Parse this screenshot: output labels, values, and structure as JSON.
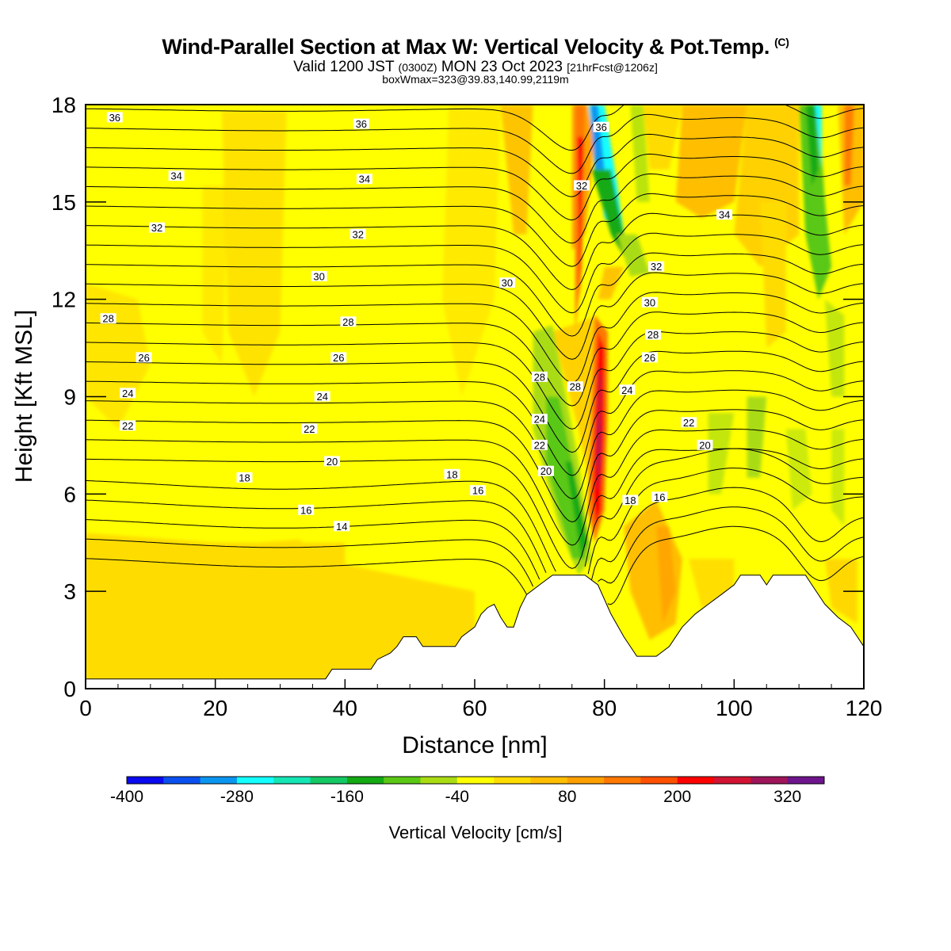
{
  "header": {
    "title": "Wind-Parallel Section at Max W: Vertical Velocity & Pot.Temp.",
    "copyright": "(C)",
    "valid_prefix": "Valid 1200 JST",
    "valid_utc": "(0300Z)",
    "valid_date": "MON 23 Oct 2023",
    "forecast": "[21hrFcst@1206z]",
    "boxwmax": "boxWmax=323@39.83,140.99,2119m"
  },
  "chart_data": {
    "type": "heatmap",
    "title": "Wind-Parallel Section at Max W: Vertical Velocity & Pot.Temp.",
    "xlabel": "Distance [nm]",
    "ylabel": "Height [Kft MSL]",
    "xlim": [
      0,
      120
    ],
    "ylim": [
      0,
      18
    ],
    "x_ticks": [
      "0",
      "20",
      "40",
      "60",
      "80",
      "100",
      "120"
    ],
    "y_ticks": [
      "0",
      "3",
      "6",
      "9",
      "12",
      "15",
      "18"
    ],
    "colorbar": {
      "title": "Vertical Velocity [cm/s]",
      "colors": [
        "#0a0af0",
        "#0a50f0",
        "#0a96f0",
        "#14ffff",
        "#14e6b4",
        "#14c864",
        "#14aa14",
        "#5ac814",
        "#aadc14",
        "#ffff00",
        "#ffdc00",
        "#ffbe00",
        "#ffa000",
        "#ff7800",
        "#ff5000",
        "#ff0000",
        "#d21432",
        "#a0145a",
        "#6e148c"
      ],
      "tick_labels": [
        "-400",
        "-280",
        "-160",
        "-40",
        "80",
        "200",
        "320"
      ],
      "tick_values": [
        -400,
        -280,
        -160,
        -40,
        80,
        200,
        320
      ],
      "range": [
        -400,
        360
      ]
    },
    "terrain_kft": [
      [
        0,
        0.3
      ],
      [
        10,
        0.3
      ],
      [
        20,
        0.3
      ],
      [
        30,
        0.3
      ],
      [
        37,
        0.3
      ],
      [
        38,
        0.6
      ],
      [
        44,
        0.6
      ],
      [
        45,
        0.9
      ],
      [
        47,
        1.1
      ],
      [
        48,
        1.3
      ],
      [
        49,
        1.6
      ],
      [
        51,
        1.6
      ],
      [
        52,
        1.3
      ],
      [
        57,
        1.3
      ],
      [
        58,
        1.6
      ],
      [
        60,
        1.9
      ],
      [
        61,
        2.3
      ],
      [
        62,
        2.5
      ],
      [
        63,
        2.6
      ],
      [
        64,
        2.2
      ],
      [
        65,
        1.9
      ],
      [
        66,
        1.9
      ],
      [
        67,
        2.5
      ],
      [
        68,
        2.9
      ],
      [
        70,
        3.2
      ],
      [
        72,
        3.5
      ],
      [
        77,
        3.5
      ],
      [
        79,
        3.2
      ],
      [
        81,
        2.3
      ],
      [
        83,
        1.6
      ],
      [
        85,
        1.0
      ],
      [
        88,
        1.0
      ],
      [
        90,
        1.3
      ],
      [
        92,
        1.9
      ],
      [
        94,
        2.3
      ],
      [
        96,
        2.6
      ],
      [
        98,
        2.9
      ],
      [
        100,
        3.2
      ],
      [
        101,
        3.5
      ],
      [
        104,
        3.5
      ],
      [
        105,
        3.2
      ],
      [
        106,
        3.5
      ],
      [
        111,
        3.5
      ],
      [
        112,
        3.2
      ],
      [
        114,
        2.6
      ],
      [
        116,
        2.2
      ],
      [
        118,
        1.9
      ],
      [
        119,
        1.6
      ],
      [
        120,
        1.3
      ]
    ],
    "contour_labels": [
      {
        "v": "36",
        "x": 4.5,
        "y": 17.6
      },
      {
        "v": "36",
        "x": 42.5,
        "y": 17.4
      },
      {
        "v": "36",
        "x": 79.5,
        "y": 17.3
      },
      {
        "v": "34",
        "x": 14,
        "y": 15.8
      },
      {
        "v": "34",
        "x": 43,
        "y": 15.7
      },
      {
        "v": "34",
        "x": 98.5,
        "y": 14.6
      },
      {
        "v": "32",
        "x": 11,
        "y": 14.2
      },
      {
        "v": "32",
        "x": 42,
        "y": 14.0
      },
      {
        "v": "32",
        "x": 76.5,
        "y": 15.5
      },
      {
        "v": "32",
        "x": 88,
        "y": 13.0
      },
      {
        "v": "30",
        "x": 36,
        "y": 12.7
      },
      {
        "v": "30",
        "x": 65,
        "y": 12.5
      },
      {
        "v": "30",
        "x": 87,
        "y": 11.9
      },
      {
        "v": "28",
        "x": 3.5,
        "y": 11.4
      },
      {
        "v": "28",
        "x": 40.5,
        "y": 11.3
      },
      {
        "v": "28",
        "x": 70,
        "y": 9.6
      },
      {
        "v": "28",
        "x": 75.5,
        "y": 9.3
      },
      {
        "v": "28",
        "x": 87.5,
        "y": 10.9
      },
      {
        "v": "26",
        "x": 9,
        "y": 10.2
      },
      {
        "v": "26",
        "x": 39,
        "y": 10.2
      },
      {
        "v": "26",
        "x": 87,
        "y": 10.2
      },
      {
        "v": "24",
        "x": 6.5,
        "y": 9.1
      },
      {
        "v": "24",
        "x": 36.5,
        "y": 9.0
      },
      {
        "v": "24",
        "x": 70,
        "y": 8.3
      },
      {
        "v": "24",
        "x": 83.5,
        "y": 9.2
      },
      {
        "v": "22",
        "x": 6.5,
        "y": 8.1
      },
      {
        "v": "22",
        "x": 34.5,
        "y": 8.0
      },
      {
        "v": "22",
        "x": 70,
        "y": 7.5
      },
      {
        "v": "22",
        "x": 93,
        "y": 8.2
      },
      {
        "v": "20",
        "x": 38,
        "y": 7.0
      },
      {
        "v": "20",
        "x": 71,
        "y": 6.7
      },
      {
        "v": "20",
        "x": 95.5,
        "y": 7.5
      },
      {
        "v": "18",
        "x": 24.5,
        "y": 6.5
      },
      {
        "v": "18",
        "x": 56.5,
        "y": 6.6
      },
      {
        "v": "18",
        "x": 84,
        "y": 5.8
      },
      {
        "v": "16",
        "x": 34,
        "y": 5.5
      },
      {
        "v": "16",
        "x": 60.5,
        "y": 6.1
      },
      {
        "v": "16",
        "x": 88.5,
        "y": 5.9
      },
      {
        "v": "14",
        "x": 39.5,
        "y": 5.0
      }
    ]
  }
}
